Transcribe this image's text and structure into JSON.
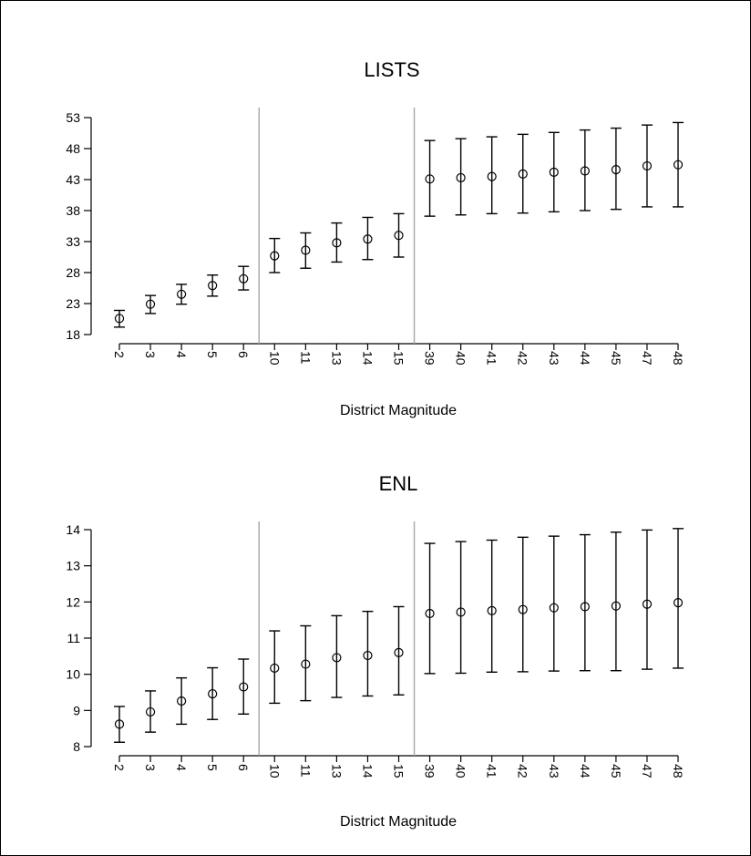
{
  "chart_data": [
    {
      "type": "scatter",
      "title": "LISTS",
      "xlabel": "District Magnitude",
      "ylabel": "",
      "categories": [
        "2",
        "3",
        "4",
        "5",
        "6",
        "10",
        "11",
        "13",
        "14",
        "15",
        "39",
        "40",
        "41",
        "42",
        "43",
        "44",
        "45",
        "47",
        "48"
      ],
      "yticks": [
        18,
        23,
        28,
        33,
        38,
        43,
        48,
        53
      ],
      "ylim": [
        18,
        53
      ],
      "separators_after_index": [
        4,
        9
      ],
      "values": [
        20.6,
        22.9,
        24.5,
        25.9,
        27.0,
        30.7,
        31.6,
        32.8,
        33.4,
        34.0,
        43.1,
        43.3,
        43.5,
        43.9,
        44.2,
        44.4,
        44.6,
        45.2,
        45.4
      ],
      "lower": [
        19.2,
        21.4,
        22.9,
        24.2,
        25.2,
        28.0,
        28.7,
        29.7,
        30.1,
        30.5,
        37.1,
        37.3,
        37.5,
        37.6,
        37.8,
        38.0,
        38.2,
        38.6,
        38.6
      ],
      "upper": [
        21.9,
        24.3,
        26.1,
        27.6,
        29.0,
        33.5,
        34.4,
        36.0,
        36.9,
        37.5,
        49.3,
        49.6,
        49.9,
        50.3,
        50.6,
        51.0,
        51.3,
        51.8,
        52.2
      ]
    },
    {
      "type": "scatter",
      "title": "ENL",
      "xlabel": "District Magnitude",
      "ylabel": "",
      "categories": [
        "2",
        "3",
        "4",
        "5",
        "6",
        "10",
        "11",
        "13",
        "14",
        "15",
        "39",
        "40",
        "41",
        "42",
        "43",
        "44",
        "45",
        "47",
        "48"
      ],
      "yticks": [
        8,
        9,
        10,
        11,
        12,
        13,
        14
      ],
      "ylim": [
        8,
        14
      ],
      "separators_after_index": [
        4,
        9
      ],
      "values": [
        8.62,
        8.96,
        9.26,
        9.46,
        9.65,
        10.17,
        10.28,
        10.46,
        10.52,
        10.6,
        11.68,
        11.72,
        11.76,
        11.79,
        11.84,
        11.87,
        11.89,
        11.94,
        11.98
      ],
      "lower": [
        8.12,
        8.4,
        8.62,
        8.75,
        8.9,
        9.2,
        9.27,
        9.36,
        9.4,
        9.43,
        10.02,
        10.03,
        10.06,
        10.07,
        10.09,
        10.1,
        10.1,
        10.14,
        10.17
      ],
      "upper": [
        9.11,
        9.54,
        9.9,
        10.18,
        10.42,
        11.2,
        11.34,
        11.62,
        11.74,
        11.87,
        13.62,
        13.67,
        13.71,
        13.79,
        13.82,
        13.86,
        13.93,
        13.99,
        14.03
      ]
    }
  ]
}
